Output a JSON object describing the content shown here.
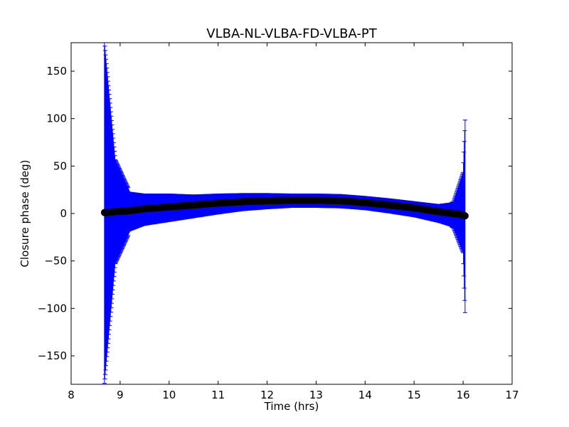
{
  "chart_data": {
    "type": "scatter",
    "title": "VLBA-NL-VLBA-FD-VLBA-PT",
    "xlabel": "Time (hrs)",
    "ylabel": "Closure phase (deg)",
    "xlim": [
      8,
      17
    ],
    "ylim": [
      -180,
      180
    ],
    "xticks": [
      8,
      9,
      10,
      11,
      12,
      13,
      14,
      15,
      16,
      17
    ],
    "yticks": [
      -150,
      -100,
      -50,
      0,
      50,
      100,
      150
    ],
    "xtick_labels": [
      "8",
      "9",
      "10",
      "11",
      "12",
      "13",
      "14",
      "15",
      "16",
      "17"
    ],
    "ytick_labels": [
      "−150",
      "−100",
      "−50",
      "0",
      "50",
      "100",
      "150"
    ],
    "grid": false,
    "colors": {
      "points": "#000000",
      "errorbars": "#0000ff"
    },
    "series": [
      {
        "x": [
          8.68,
          8.9,
          9.2,
          9.5,
          10.0,
          10.5,
          11.0,
          11.5,
          12.0,
          12.5,
          13.0,
          13.5,
          14.0,
          14.5,
          15.0,
          15.5,
          15.8,
          16.0,
          16.04
        ],
        "y": [
          1,
          2,
          3,
          5,
          7,
          9,
          11,
          12.5,
          13.5,
          14,
          14,
          13.5,
          11.5,
          9,
          6,
          2,
          0,
          -1.5,
          -2.5
        ],
        "yerr_lower": [
          180,
          55,
          22,
          18,
          16,
          14,
          12,
          10,
          9,
          8,
          8,
          8,
          8,
          9,
          10,
          12,
          15,
          40,
          102
        ],
        "yerr_upper": [
          180,
          55,
          20,
          16,
          14,
          11,
          10,
          9,
          8,
          7,
          7,
          7,
          7,
          7,
          7,
          8,
          12,
          45,
          101
        ]
      }
    ]
  }
}
